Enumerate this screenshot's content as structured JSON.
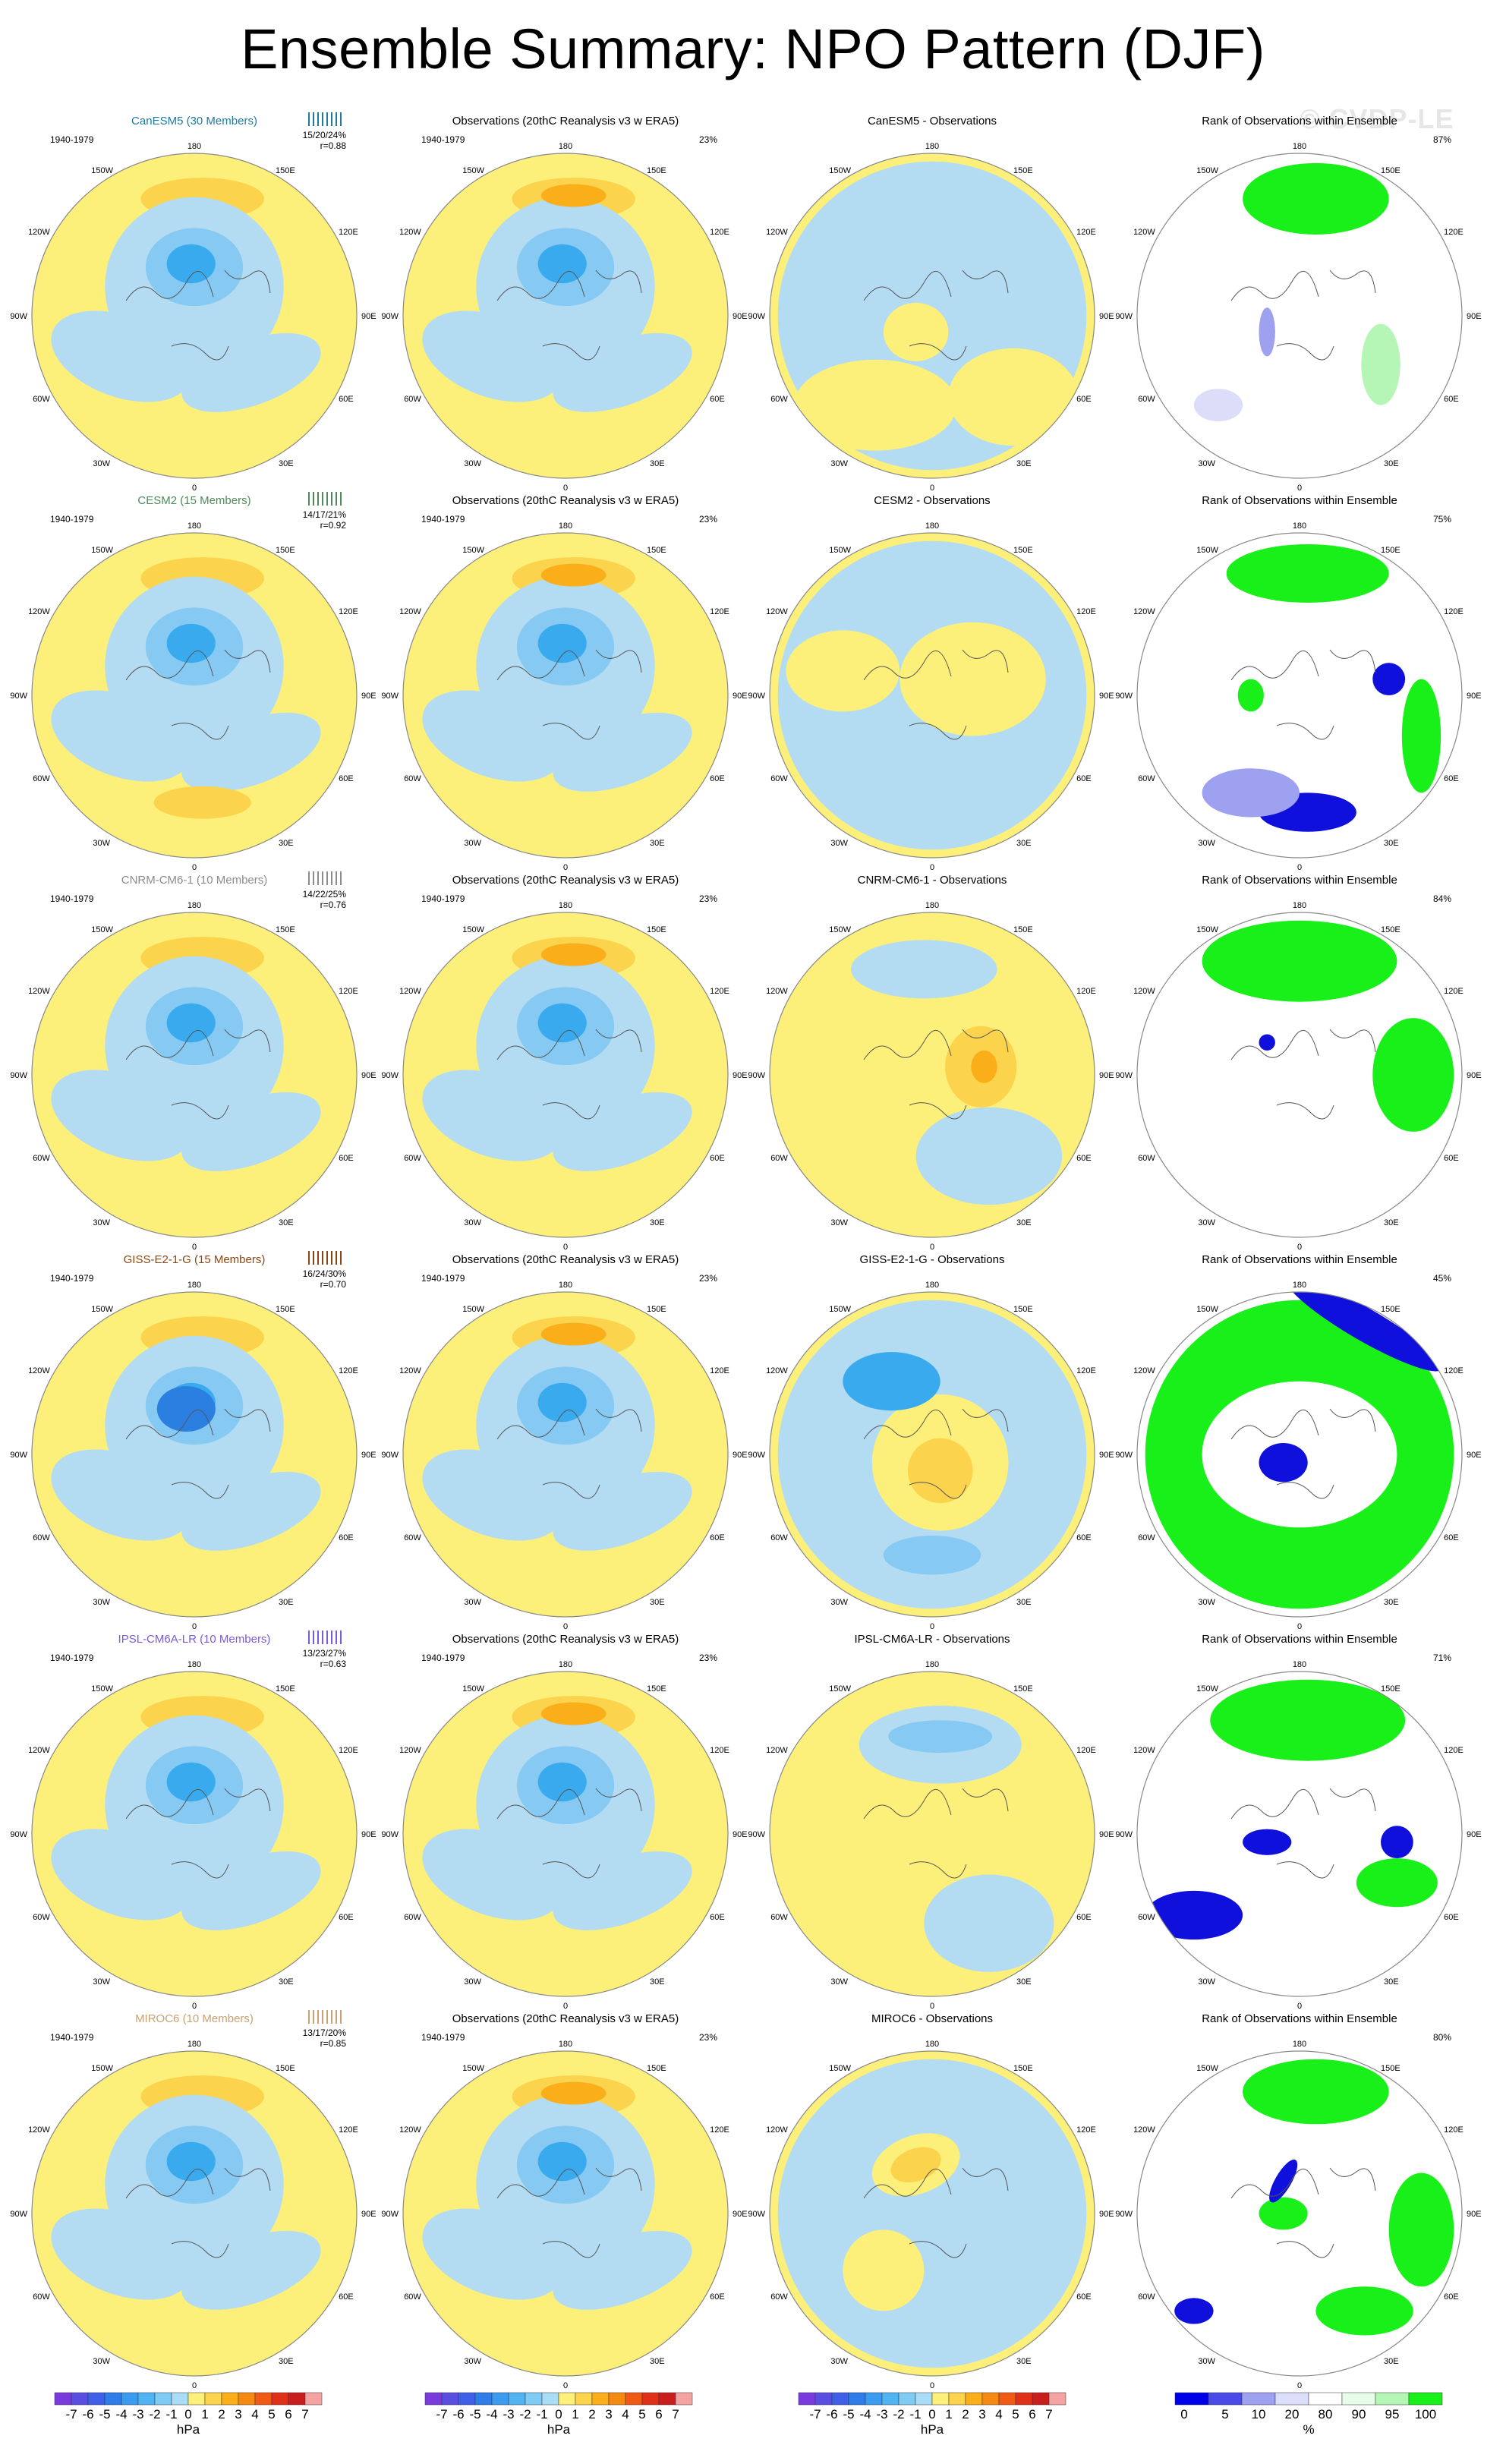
{
  "title": "Ensemble Summary: NPO Pattern (DJF)",
  "watermark": "© CVDP-LE",
  "period": "1940-1979",
  "obs_title": "Observations (20thC Reanalysis v3 w ERA5)",
  "obs_pct": "23%",
  "rank_title": "Rank of Observations within Ensemble",
  "lon_labels": [
    "180",
    "150E",
    "120E",
    "90E",
    "60E",
    "30E",
    "0",
    "30W",
    "60W",
    "90W",
    "120W",
    "150W"
  ],
  "colors": {
    "pos1": "#fdf07a",
    "pos2": "#fbd34d",
    "pos3": "#f9ae1a",
    "neg1": "#b3dcf3",
    "neg2": "#86c9f2",
    "neg3": "#3aaaee",
    "neg4": "#2a7fe0",
    "rank_high": "#19f019",
    "rank_mid": "#b5f5b5",
    "rank_light": "#e8fde8",
    "rank_low": "#1010dd",
    "rank_lowmid": "#9ea0f0",
    "rank_lowlight": "#dcddf8"
  },
  "rows": [
    {
      "model": "CanESM5 (30 Members)",
      "model_color": "#1f7a9e",
      "stats": "15/20/24%",
      "r": "r=0.88",
      "diff_title": "CanESM5 - Observations",
      "rank_pct": "87%"
    },
    {
      "model": "CESM2 (15 Members)",
      "model_color": "#4f8a5b",
      "stats": "14/17/21%",
      "r": "r=0.92",
      "diff_title": "CESM2 - Observations",
      "rank_pct": "75%"
    },
    {
      "model": "CNRM-CM6-1 (10 Members)",
      "model_color": "#8c8c8c",
      "stats": "14/22/25%",
      "r": "r=0.76",
      "diff_title": "CNRM-CM6-1 - Observations",
      "rank_pct": "84%"
    },
    {
      "model": "GISS-E2-1-G (15 Members)",
      "model_color": "#8b4513",
      "stats": "16/24/30%",
      "r": "r=0.70",
      "diff_title": "GISS-E2-1-G - Observations",
      "rank_pct": "45%"
    },
    {
      "model": "IPSL-CM6A-LR (10 Members)",
      "model_color": "#7a5cd6",
      "stats": "13/23/27%",
      "r": "r=0.63",
      "diff_title": "IPSL-CM6A-LR - Observations",
      "rank_pct": "71%"
    },
    {
      "model": "MIROC6 (10 Members)",
      "model_color": "#c9a173",
      "stats": "13/17/20%",
      "r": "r=0.85",
      "diff_title": "MIROC6 - Observations",
      "rank_pct": "80%"
    }
  ],
  "colorbars": {
    "hpa_labels": [
      "-7",
      "-6",
      "-5",
      "-4",
      "-3",
      "-2",
      "-1",
      "0",
      "1",
      "2",
      "3",
      "4",
      "5",
      "6",
      "7"
    ],
    "hpa_unit": "hPa",
    "hpa_colors": [
      "#7a3bdc",
      "#5a4ee0",
      "#3f60e6",
      "#2e7de8",
      "#3a9bef",
      "#50b3f2",
      "#7ecbf3",
      "#a9dcf5",
      "#fdf07a",
      "#fbd34d",
      "#f9ae1a",
      "#f58a12",
      "#ef5a14",
      "#e0301a",
      "#c81e1e",
      "#f4a3a3"
    ],
    "rank_labels": [
      "0",
      "5",
      "10",
      "20",
      "80",
      "90",
      "95",
      "100"
    ],
    "rank_unit": "%",
    "rank_colors": [
      "#0000e6",
      "#4a4ae8",
      "#9ea0f0",
      "#dcddf8",
      "#ffffff",
      "#e8fde8",
      "#b5f5b5",
      "#19f019"
    ]
  }
}
